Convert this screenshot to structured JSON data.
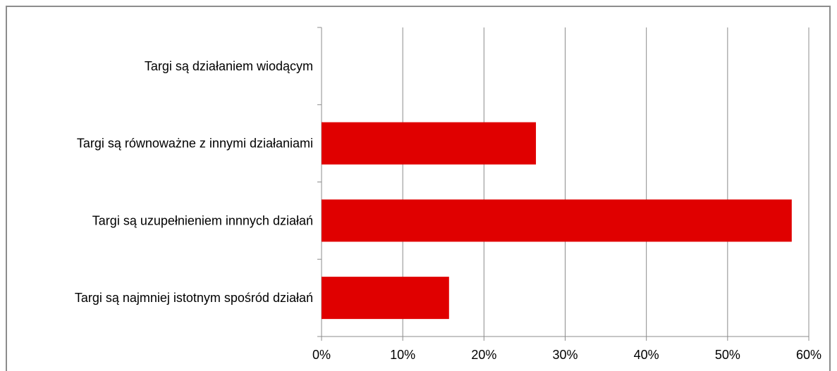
{
  "chart_data": {
    "type": "bar",
    "orientation": "horizontal",
    "categories": [
      "Targi są działaniem wiodącym",
      "Targi są równoważne z innymi działaniami",
      "Targi są uzupełnieniem innnych działań",
      "Targi są najmniej istotnym spośród działań"
    ],
    "values": [
      0,
      0.264,
      0.579,
      0.157
    ],
    "xlim": [
      0,
      0.6
    ],
    "xticks": [
      "0%",
      "10%",
      "20%",
      "30%",
      "40%",
      "50%",
      "60%"
    ],
    "grid": true,
    "legend": "none",
    "bar_color": "#e00000",
    "grid_color": "#8c8c8c"
  }
}
